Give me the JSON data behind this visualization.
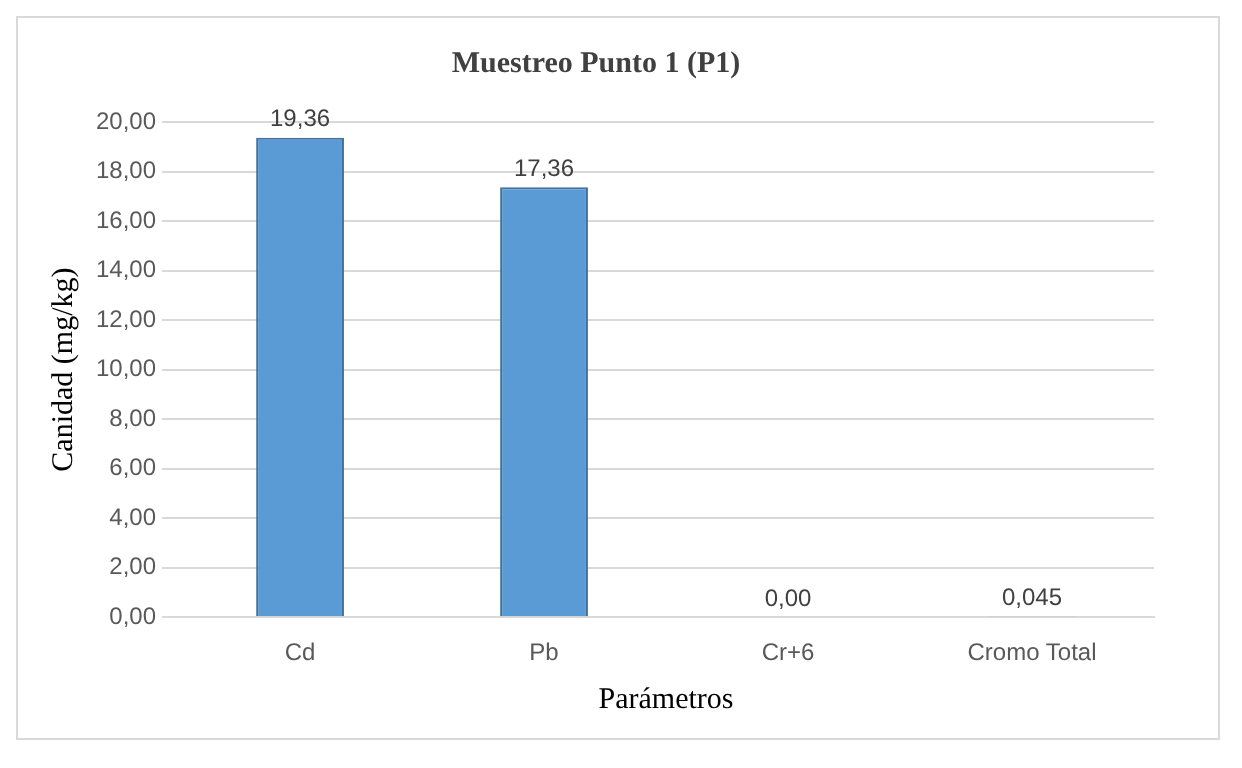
{
  "chart_data": {
    "type": "bar",
    "title": "Muestreo Punto 1 (P1)",
    "xlabel": "Parámetros",
    "ylabel": "Canidad (mg/kg)",
    "categories": [
      "Cd",
      "Pb",
      "Cr+6",
      "Cromo Total"
    ],
    "values": [
      19.36,
      17.36,
      0.0,
      0.045
    ],
    "value_labels": [
      "19,36",
      "17,36",
      "0,00",
      "0,045"
    ],
    "color": "#5b9bd5",
    "ylim": [
      0,
      20
    ],
    "yticks": [
      {
        "value": 0,
        "label": "0,00"
      },
      {
        "value": 2,
        "label": "2,00"
      },
      {
        "value": 4,
        "label": "4,00"
      },
      {
        "value": 6,
        "label": "6,00"
      },
      {
        "value": 8,
        "label": "8,00"
      },
      {
        "value": 10,
        "label": "10,00"
      },
      {
        "value": 12,
        "label": "12,00"
      },
      {
        "value": 14,
        "label": "14,00"
      },
      {
        "value": 16,
        "label": "16,00"
      },
      {
        "value": 18,
        "label": "18,00"
      },
      {
        "value": 20,
        "label": "20,00"
      }
    ],
    "grid": "y"
  }
}
